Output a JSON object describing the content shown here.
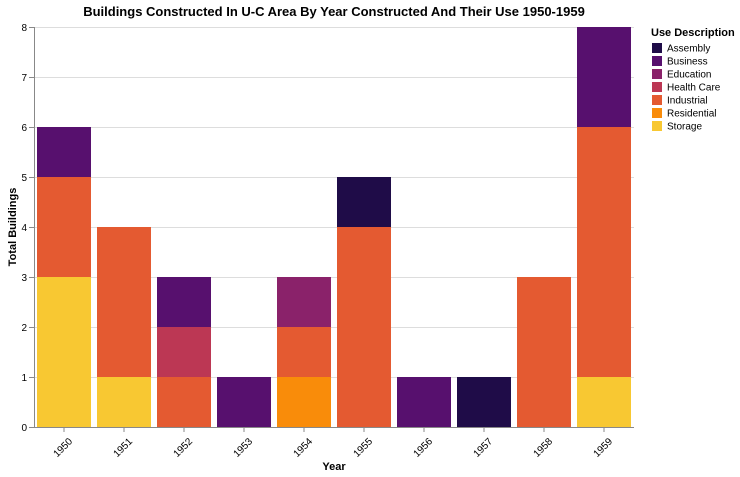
{
  "chart_data": {
    "type": "bar",
    "stacked": true,
    "title": "Buildings Constructed In U-C Area By Year Constructed And Their Use 1950-1959",
    "xlabel": "Year",
    "ylabel": "Total Buildings",
    "ylim": [
      0,
      8
    ],
    "yticks": [
      0,
      1,
      2,
      3,
      4,
      5,
      6,
      7,
      8
    ],
    "grid": true,
    "legend_title": "Use Description",
    "legend_position": "right",
    "categories": [
      "1950",
      "1951",
      "1952",
      "1953",
      "1954",
      "1955",
      "1956",
      "1957",
      "1958",
      "1959"
    ],
    "series": [
      {
        "name": "Storage",
        "color": "#f8c832",
        "values": [
          3,
          1,
          0,
          0,
          0,
          0,
          0,
          0,
          0,
          1
        ]
      },
      {
        "name": "Residential",
        "color": "#f98c0a",
        "values": [
          0,
          0,
          0,
          0,
          1,
          0,
          0,
          0,
          0,
          0
        ]
      },
      {
        "name": "Industrial",
        "color": "#e45a31",
        "values": [
          2,
          3,
          1,
          0,
          1,
          4,
          0,
          0,
          3,
          5
        ]
      },
      {
        "name": "Health Care",
        "color": "#bc3754",
        "values": [
          0,
          0,
          1,
          0,
          0,
          0,
          0,
          0,
          0,
          0
        ]
      },
      {
        "name": "Education",
        "color": "#8a226a",
        "values": [
          0,
          0,
          0,
          0,
          1,
          0,
          0,
          0,
          0,
          0
        ]
      },
      {
        "name": "Business",
        "color": "#57106e",
        "values": [
          1,
          0,
          1,
          1,
          0,
          0,
          1,
          0,
          0,
          2
        ]
      },
      {
        "name": "Assembly",
        "color": "#1f0c48",
        "values": [
          0,
          0,
          0,
          0,
          0,
          1,
          0,
          1,
          0,
          0
        ]
      }
    ],
    "legend_order": [
      "Assembly",
      "Business",
      "Education",
      "Health Care",
      "Industrial",
      "Residential",
      "Storage"
    ]
  }
}
